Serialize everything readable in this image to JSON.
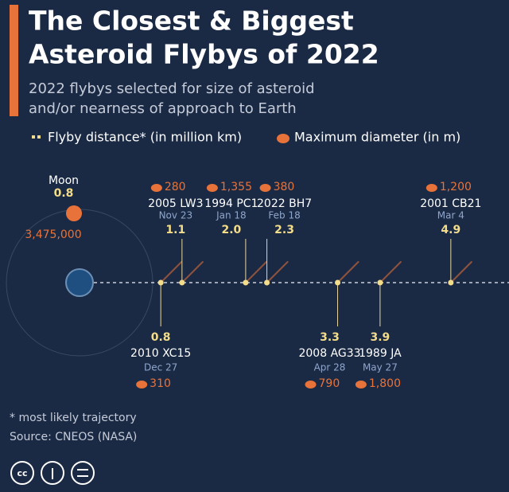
{
  "chart_data": {
    "type": "flyby",
    "title": [
      "The Closest & Biggest",
      "Asteroid Flybys of 2022"
    ],
    "subtitle": [
      "2022 flybys selected for size of asteroid",
      "and/or nearness of approach to Earth"
    ],
    "categories": [
      "2010 XC15",
      "2005 LW3",
      "1994 PC1",
      "2022 BH7",
      "2008 AG33",
      "1989 JA",
      "2001 CB21"
    ],
    "dates": [
      "Dec 27",
      "Nov 23",
      "Jan 18",
      "Feb 18",
      "Apr 28",
      "May 27",
      "Mar 4"
    ],
    "series": [
      {
        "name": "Flyby distance* (in million km)",
        "color": "#f3dc8a",
        "values": [
          0.8,
          1.1,
          2.0,
          2.3,
          3.3,
          3.9,
          4.9
        ],
        "value_labels": [
          "0.8",
          "1.1",
          "2.0",
          "2.3",
          "3.3",
          "3.9",
          "4.9"
        ]
      },
      {
        "name": "Maximum diameter (in m)",
        "color": "#e8733a",
        "values": [
          310,
          280,
          1355,
          380,
          790,
          1800,
          1200
        ],
        "value_labels": [
          "310",
          "280",
          "1,355",
          "380",
          "790",
          "1,800",
          "1,200"
        ]
      }
    ],
    "xlim": [
      0,
      5.7
    ],
    "moon": {
      "label": "Moon",
      "distance": 0.8,
      "distance_label": "0.8",
      "diameter": 3475000,
      "diameter_label": "3,475,000"
    },
    "footnote": "* most likely trajectory",
    "source": "Source: CNEOS (NASA)"
  }
}
